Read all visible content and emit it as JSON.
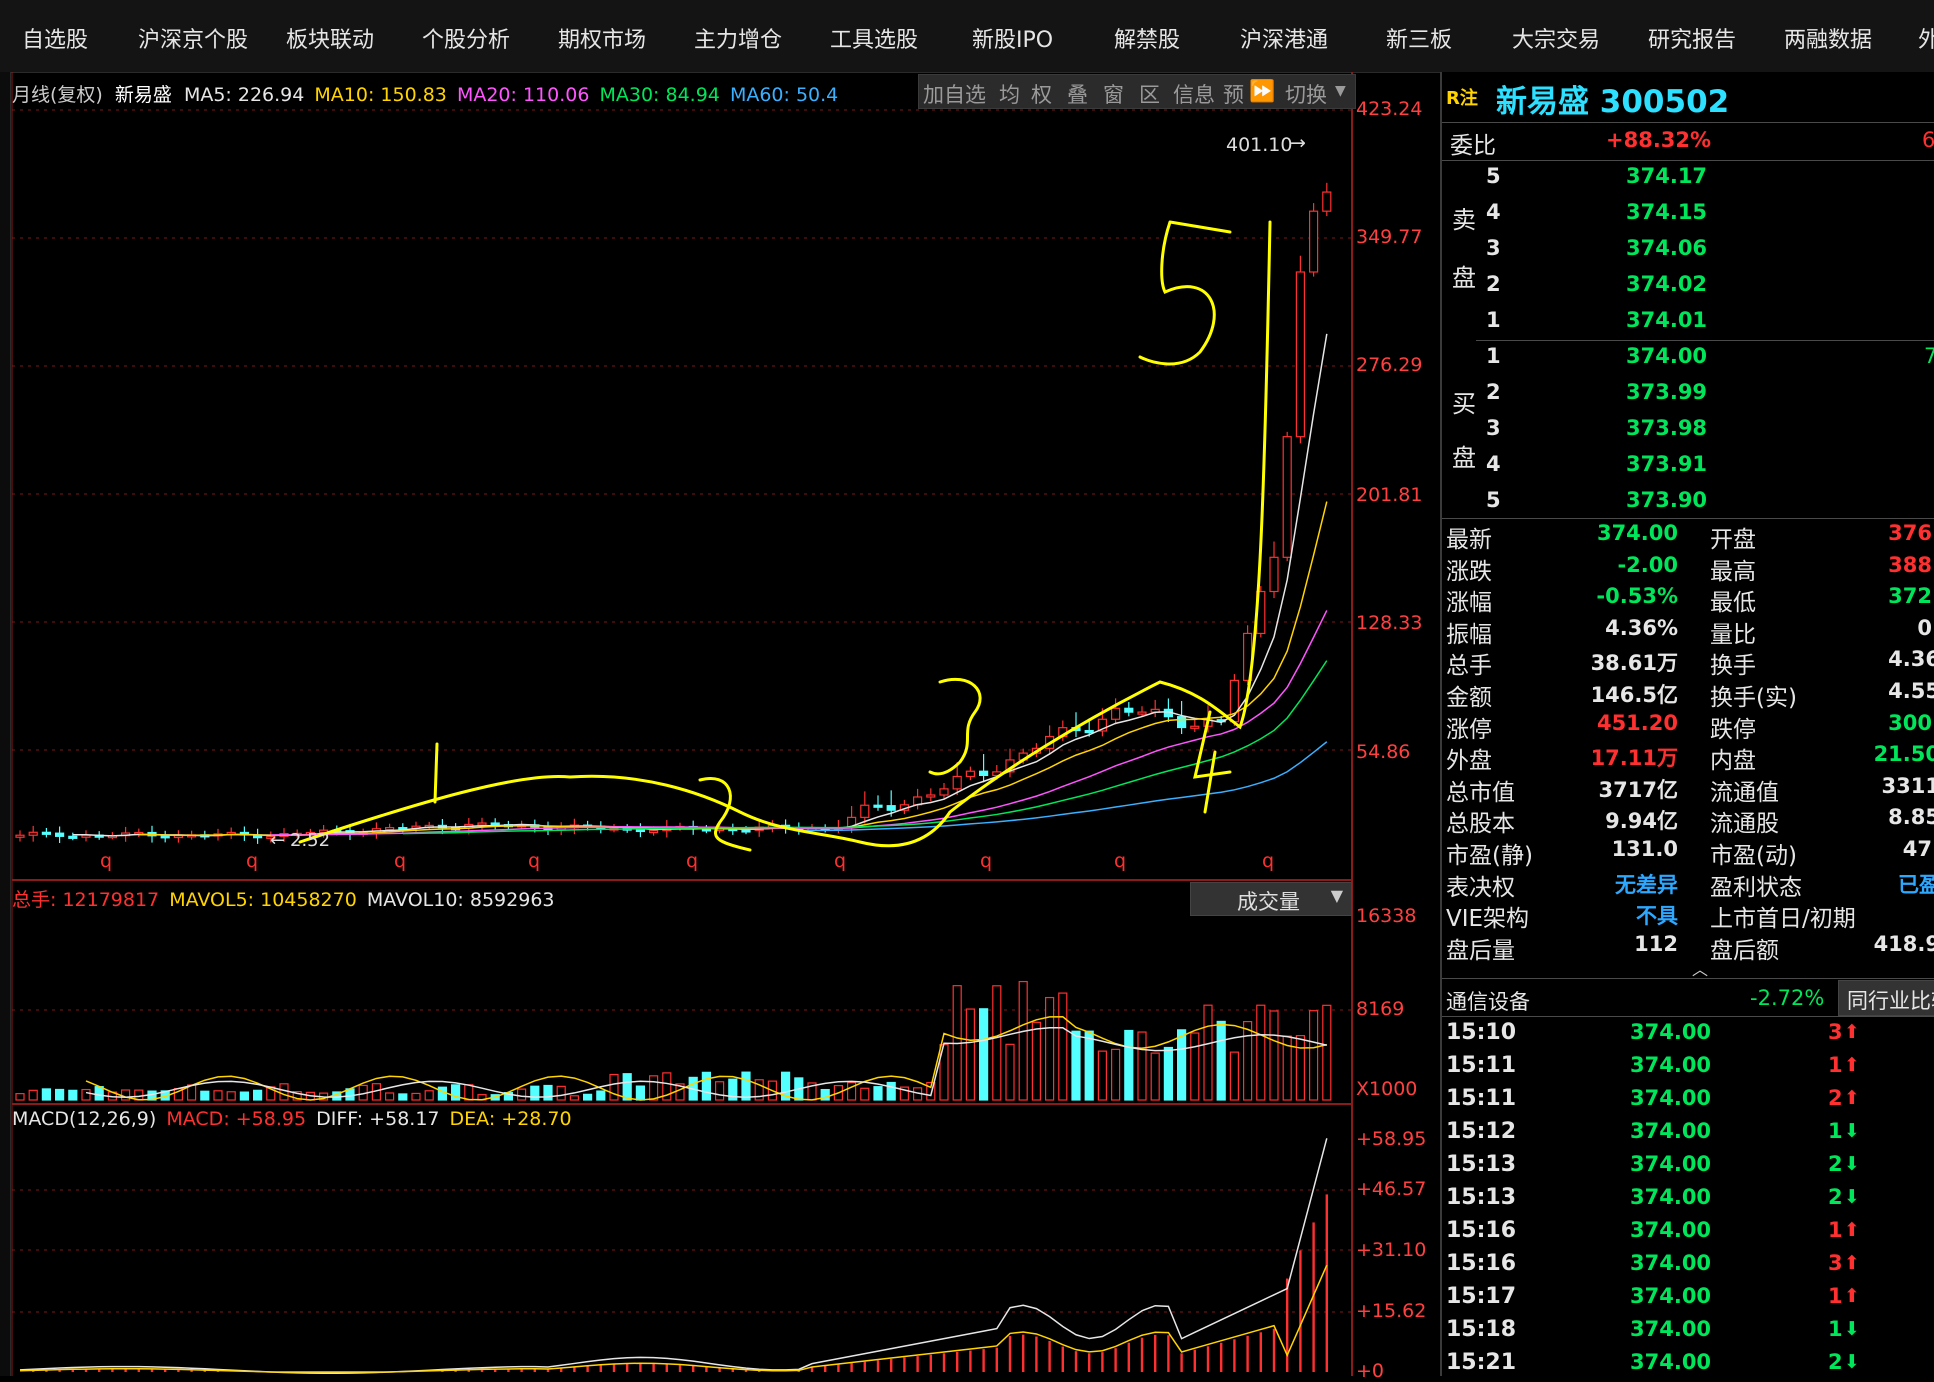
{
  "nav": [
    "自选股",
    "沪深京个股",
    "板块联动",
    "个股分析",
    "期权市场",
    "主力增仓",
    "工具选股",
    "新股IPO",
    "解禁股",
    "沪深港通",
    "新三板",
    "大宗交易",
    "研究报告",
    "两融数据",
    "外"
  ],
  "kline": {
    "period_label": "月线(复权)",
    "stock_name": "新易盛",
    "ma5": "MA5: 226.94",
    "ma10": "MA10: 150.83",
    "ma20": "MA20: 110.06",
    "ma30": "MA30: 84.94",
    "ma60": "MA60: 50.4",
    "price_axis": [
      "423.24",
      "349.77",
      "276.29",
      "201.81",
      "128.33",
      "54.86"
    ],
    "high_marker": "401.10",
    "low_marker": "2.52",
    "q_markers": [
      "q",
      "q",
      "q",
      "q",
      "q",
      "q",
      "q",
      "q",
      "q"
    ],
    "annotations": [
      "1",
      "2",
      "3",
      "4",
      "5"
    ]
  },
  "toolbar": [
    "加自选",
    "均",
    "权",
    "叠",
    "窗",
    "区",
    "信息",
    "预",
    "切换"
  ],
  "volume": {
    "total": "总手: 12179817",
    "mavol5": "MAVOL5: 10458270",
    "mavol10": "MAVOL10: 8592963",
    "dropdown": "成交量",
    "axis": [
      "16338",
      "8169",
      "X1000"
    ]
  },
  "macd": {
    "title": "MACD(12,26,9)",
    "macd": "MACD: +58.95",
    "diff": "DIFF: +58.17",
    "dea": "DEA: +28.70",
    "axis": [
      "+58.95",
      "+46.57",
      "+31.10",
      "+15.62",
      "+0"
    ]
  },
  "quote": {
    "tag": "R注",
    "name_code": "新易盛 300502",
    "weibi_label": "委比",
    "weibi": "+88.32%",
    "weibi_right": "6",
    "sell_label": [
      "卖",
      "盘"
    ],
    "buy_label": [
      "买",
      "盘"
    ],
    "sell": [
      {
        "level": "5",
        "price": "374.17"
      },
      {
        "level": "4",
        "price": "374.15"
      },
      {
        "level": "3",
        "price": "374.06"
      },
      {
        "level": "2",
        "price": "374.02"
      },
      {
        "level": "1",
        "price": "374.01"
      }
    ],
    "buy": [
      {
        "level": "1",
        "price": "374.00",
        "vol": "7"
      },
      {
        "level": "2",
        "price": "373.99",
        "vol": ""
      },
      {
        "level": "3",
        "price": "373.98",
        "vol": ""
      },
      {
        "level": "4",
        "price": "373.91",
        "vol": ""
      },
      {
        "level": "5",
        "price": "373.90",
        "vol": ""
      }
    ],
    "stats": [
      {
        "l": "最新",
        "v": "374.00",
        "vc": "green",
        "l2": "开盘",
        "v2": "376.",
        "v2c": "red"
      },
      {
        "l": "涨跌",
        "v": "-2.00",
        "vc": "green",
        "l2": "最高",
        "v2": "388.",
        "v2c": "red"
      },
      {
        "l": "涨幅",
        "v": "-0.53%",
        "vc": "green",
        "l2": "最低",
        "v2": "372.",
        "v2c": "green"
      },
      {
        "l": "振幅",
        "v": "4.36%",
        "vc": "white",
        "l2": "量比",
        "v2": "0.",
        "v2c": "white"
      },
      {
        "l": "总手",
        "v": "38.61万",
        "vc": "white",
        "l2": "换手",
        "v2": "4.36",
        "v2c": "white"
      },
      {
        "l": "金额",
        "v": "146.5亿",
        "vc": "white",
        "l2": "换手(实)",
        "v2": "4.55",
        "v2c": "white"
      },
      {
        "l": "涨停",
        "v": "451.20",
        "vc": "red",
        "l2": "跌停",
        "v2": "300.",
        "v2c": "green"
      },
      {
        "l": "外盘",
        "v": "17.11万",
        "vc": "red",
        "l2": "内盘",
        "v2": "21.50",
        "v2c": "green"
      },
      {
        "l": "总市值",
        "v": "3717亿",
        "vc": "white",
        "l2": "流通值",
        "v2": "3311",
        "v2c": "white"
      },
      {
        "l": "总股本",
        "v": "9.94亿",
        "vc": "white",
        "l2": "流通股",
        "v2": "8.85",
        "v2c": "white"
      },
      {
        "l": "市盈(静)",
        "v": "131.0",
        "vc": "white",
        "l2": "市盈(动)",
        "v2": "47.",
        "v2c": "white"
      },
      {
        "l": "表决权",
        "v": "无差异",
        "vc": "blue",
        "l2": "盈利状态",
        "v2": "已盈",
        "v2c": "blue"
      },
      {
        "l": "VIE架构",
        "v": "不具",
        "vc": "blue",
        "l2": "上市首日/初期",
        "v2": "",
        "v2c": "white"
      },
      {
        "l": "盘后量",
        "v": "112",
        "vc": "white",
        "l2": "盘后额",
        "v2": "418.9",
        "v2c": "white"
      }
    ],
    "sector": "通信设备",
    "sector_change": "-2.72%",
    "peer_button": "同行业比较",
    "ticks": [
      {
        "t": "15:10",
        "p": "374.00",
        "v": "3",
        "dir": "up"
      },
      {
        "t": "15:11",
        "p": "374.00",
        "v": "1",
        "dir": "up"
      },
      {
        "t": "15:11",
        "p": "374.00",
        "v": "2",
        "dir": "up"
      },
      {
        "t": "15:12",
        "p": "374.00",
        "v": "1",
        "dir": "down"
      },
      {
        "t": "15:13",
        "p": "374.00",
        "v": "2",
        "dir": "down"
      },
      {
        "t": "15:13",
        "p": "374.00",
        "v": "2",
        "dir": "down"
      },
      {
        "t": "15:16",
        "p": "374.00",
        "v": "1",
        "dir": "up"
      },
      {
        "t": "15:16",
        "p": "374.00",
        "v": "3",
        "dir": "up"
      },
      {
        "t": "15:17",
        "p": "374.00",
        "v": "1",
        "dir": "up"
      },
      {
        "t": "15:18",
        "p": "374.00",
        "v": "1",
        "dir": "down"
      },
      {
        "t": "15:21",
        "p": "374.00",
        "v": "2",
        "dir": "down"
      }
    ]
  }
}
